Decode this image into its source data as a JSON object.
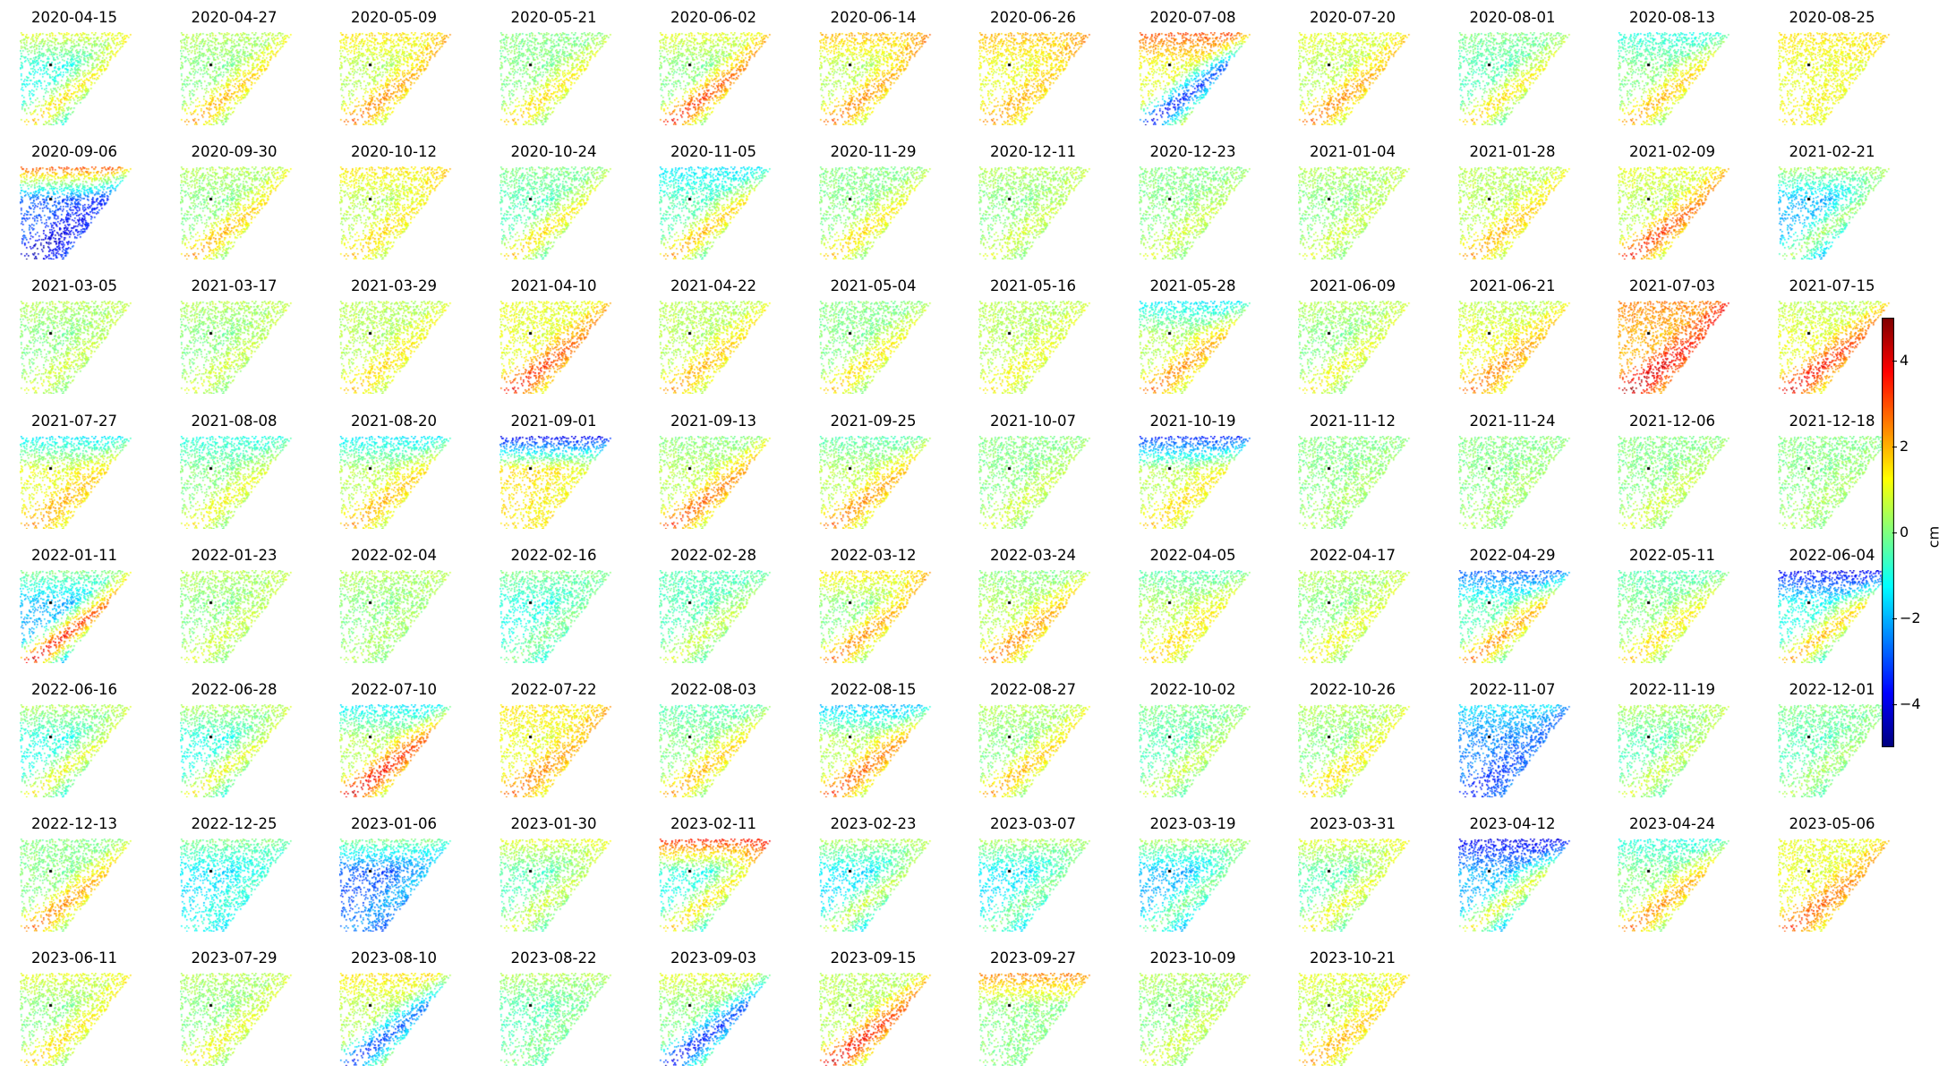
{
  "chart_data": {
    "type": "heatmap",
    "colormap": "jet",
    "dates": [
      "2020-04-15",
      "2020-04-27",
      "2020-05-09",
      "2020-05-21",
      "2020-06-02",
      "2020-06-14",
      "2020-06-26",
      "2020-07-08",
      "2020-07-20",
      "2020-08-01",
      "2020-08-13",
      "2020-08-25",
      "2020-09-06",
      "2020-09-30",
      "2020-10-12",
      "2020-10-24",
      "2020-11-05",
      "2020-11-29",
      "2020-12-11",
      "2020-12-23",
      "2021-01-04",
      "2021-01-28",
      "2021-02-09",
      "2021-02-21",
      "2021-03-05",
      "2021-03-17",
      "2021-03-29",
      "2021-04-10",
      "2021-04-22",
      "2021-05-04",
      "2021-05-16",
      "2021-05-28",
      "2021-06-09",
      "2021-06-21",
      "2021-07-03",
      "2021-07-15",
      "2021-07-27",
      "2021-08-08",
      "2021-08-20",
      "2021-09-01",
      "2021-09-13",
      "2021-09-25",
      "2021-10-07",
      "2021-10-19",
      "2021-11-12",
      "2021-11-24",
      "2021-12-06",
      "2021-12-18",
      "2022-01-11",
      "2022-01-23",
      "2022-02-04",
      "2022-02-16",
      "2022-02-28",
      "2022-03-12",
      "2022-03-24",
      "2022-04-05",
      "2022-04-17",
      "2022-04-29",
      "2022-05-11",
      "2022-06-04",
      "2022-06-16",
      "2022-06-28",
      "2022-07-10",
      "2022-07-22",
      "2022-08-03",
      "2022-08-15",
      "2022-08-27",
      "2022-10-02",
      "2022-10-26",
      "2022-11-07",
      "2022-11-19",
      "2022-12-01",
      "2022-12-13",
      "2022-12-25",
      "2023-01-06",
      "2023-01-30",
      "2023-02-11",
      "2023-02-23",
      "2023-03-07",
      "2023-03-19",
      "2023-03-31",
      "2023-04-12",
      "2023-04-24",
      "2023-05-06",
      "2023-06-11",
      "2023-07-29",
      "2023-08-10",
      "2023-08-22",
      "2023-09-03",
      "2023-09-15",
      "2023-09-27",
      "2023-10-09",
      "2023-10-21"
    ],
    "pattern": {
      "coast_cm": [
        2,
        2.5,
        3,
        2,
        4,
        3,
        2.5,
        -4.5,
        3,
        2,
        2.5,
        1.5,
        -5,
        2.5,
        2,
        2,
        2.5,
        2,
        1,
        1,
        1,
        2.5,
        4,
        0.5,
        1,
        1,
        2,
        4,
        2.5,
        2,
        1.5,
        3,
        1.5,
        3,
        5,
        4.5,
        2.5,
        1.5,
        2.5,
        1.5,
        3.5,
        3,
        1,
        2,
        0.5,
        0.5,
        1,
        0.5,
        4.5,
        1,
        0.5,
        0,
        1,
        3,
        3,
        2,
        1.5,
        3,
        2,
        2.5,
        1.5,
        1.5,
        4.5,
        3,
        2.5,
        3.5,
        2.5,
        1,
        2,
        -4,
        1,
        0.5,
        3,
        -1,
        -2.5,
        1,
        2,
        1,
        0,
        0,
        1.5,
        1.5,
        3,
        3.5,
        2,
        1.5,
        -4,
        0,
        -4.5,
        4.5,
        0,
        1,
        2.5
      ],
      "top_cm": [
        1,
        0.5,
        1.5,
        0,
        1,
        2,
        2,
        3,
        1,
        0,
        -1,
        1.5,
        3,
        0.5,
        1.5,
        0,
        -1.5,
        0,
        0.5,
        0,
        0.5,
        0.5,
        1,
        0.5,
        0.5,
        0.5,
        0.5,
        1,
        0.5,
        0,
        0.5,
        -1.5,
        0.5,
        0.5,
        2.5,
        0.5,
        -1.5,
        -1,
        -1.5,
        -4,
        0,
        -0.5,
        0,
        -3.5,
        0,
        0,
        0,
        0,
        0,
        0.5,
        0.5,
        0,
        -0.5,
        1.5,
        0,
        -0.5,
        0.5,
        -3,
        -0.5,
        -4,
        0.5,
        0.5,
        -1.5,
        1.5,
        -0.5,
        -2,
        0.5,
        0,
        0.5,
        -1.5,
        0.5,
        0,
        0,
        0,
        0,
        1,
        3.5,
        0.5,
        0.5,
        0.5,
        1,
        -4,
        -1,
        1,
        1,
        0.5,
        1.5,
        0.5,
        1,
        0.5,
        2.5,
        0.5,
        1
      ],
      "mid_cm": [
        -1,
        0,
        0.5,
        0,
        0,
        0.5,
        1,
        1,
        0.5,
        -0.5,
        0,
        1,
        -3,
        0,
        0.5,
        -0.5,
        -0.5,
        0,
        0,
        0,
        0,
        0.5,
        0.5,
        -2,
        0,
        0,
        0.5,
        1,
        0.5,
        0,
        0.5,
        0.5,
        0,
        1,
        2,
        1,
        1,
        0,
        0.5,
        1.5,
        0.5,
        0.5,
        0,
        0.5,
        0,
        0,
        0,
        0,
        -2,
        0,
        0,
        -1,
        -0.5,
        0,
        0.5,
        0.5,
        0,
        -0.5,
        0,
        -1,
        -1,
        -1,
        0.5,
        1,
        0,
        0.5,
        0,
        -0.5,
        0,
        -2.5,
        -0.5,
        -0.5,
        0,
        -1.5,
        -3,
        -0.5,
        -1,
        -1.5,
        -1.5,
        -2,
        -0.5,
        -2,
        0,
        1,
        0,
        0,
        0.5,
        -0.5,
        0,
        0.5,
        0,
        0,
        0.5
      ]
    },
    "colorbar": {
      "label": "cm",
      "range": [
        -5,
        5
      ],
      "ticks": [
        {
          "value": 4,
          "label": "4"
        },
        {
          "value": 2,
          "label": "2"
        },
        {
          "value": 0,
          "label": "0"
        },
        {
          "value": -2,
          "label": "−2"
        },
        {
          "value": -4,
          "label": "−4"
        }
      ]
    },
    "layout": "8 rows x 12 columns of small-multiple displacement maps"
  }
}
